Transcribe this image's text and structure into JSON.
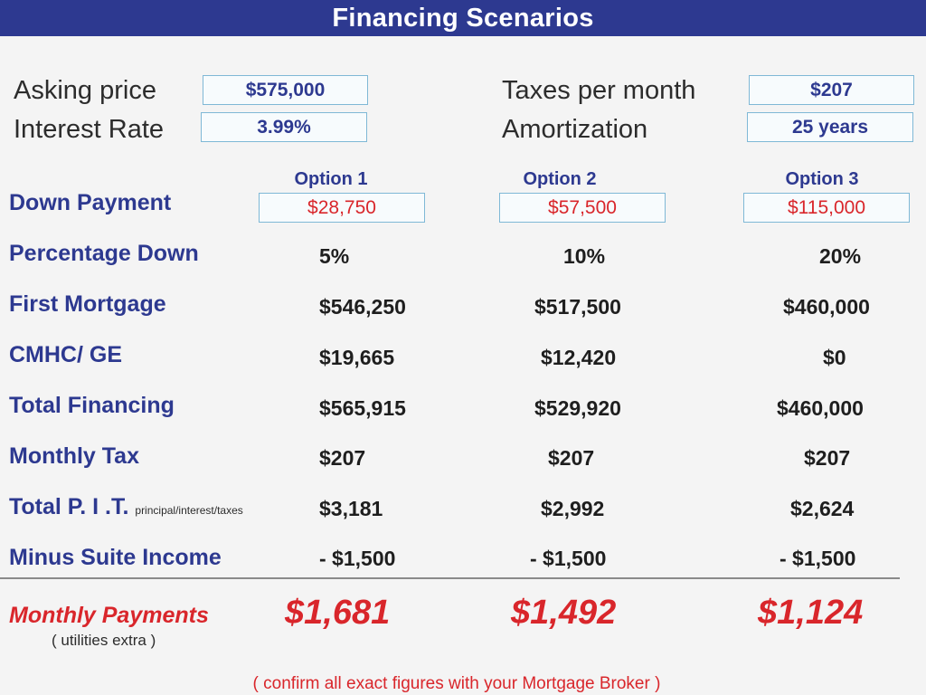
{
  "title": "Financing Scenarios",
  "inputs": {
    "asking_price": {
      "label": "Asking price",
      "value": "$575,000"
    },
    "interest_rate": {
      "label": "Interest Rate",
      "value": "3.99%"
    },
    "taxes_per_month": {
      "label": "Taxes per month",
      "value": "$207"
    },
    "amortization": {
      "label": "Amortization",
      "value": "25 years"
    }
  },
  "options": [
    "Option 1",
    "Option 2",
    "Option 3"
  ],
  "down_payment": {
    "label": "Down Payment",
    "values": [
      "$28,750",
      "$57,500",
      "$115,000"
    ]
  },
  "rows": [
    {
      "label": "Percentage Down",
      "values": [
        "5%",
        "10%",
        "20%"
      ]
    },
    {
      "label": "First Mortgage",
      "values": [
        "$546,250",
        "$517,500",
        "$460,000"
      ]
    },
    {
      "label": "CMHC/ GE",
      "values": [
        "$19,665",
        "$12,420",
        "$0"
      ]
    },
    {
      "label": "Total Financing",
      "values": [
        "$565,915",
        "$529,920",
        "$460,000"
      ]
    },
    {
      "label": "Monthly Tax",
      "values": [
        "$207",
        "$207",
        "$207"
      ]
    },
    {
      "label": "Total P. I .T.",
      "note": "principal/interest/taxes",
      "values": [
        "$3,181",
        "$2,992",
        "$2,624"
      ]
    },
    {
      "label": "Minus Suite Income",
      "values": [
        "- $1,500",
        "- $1,500",
        "- $1,500"
      ]
    }
  ],
  "monthly_payments": {
    "label": "Monthly Payments",
    "note": "( utilities extra )",
    "values": [
      "$1,681",
      "$1,492",
      "$1,124"
    ]
  },
  "footnote": "( confirm all exact figures with your Mortgage Broker )"
}
